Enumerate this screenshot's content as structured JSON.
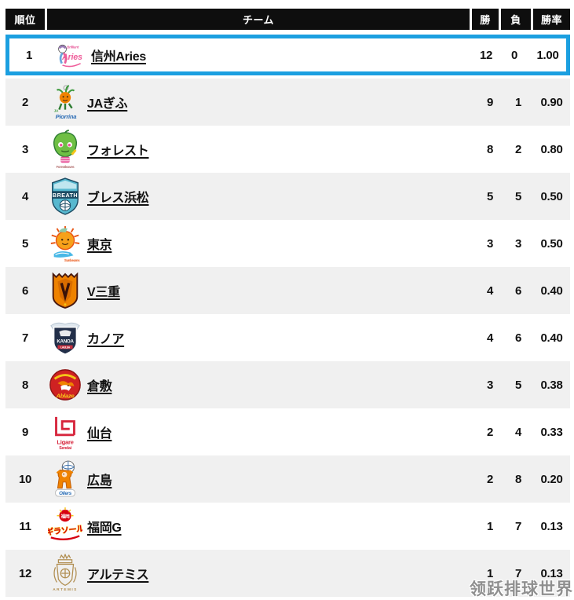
{
  "header": {
    "rank": "順位",
    "team": "チーム",
    "wins": "勝",
    "losses": "負",
    "rate": "勝率"
  },
  "watermark": "领跃排球世界",
  "colors": {
    "header_bg": "#0e0e0e",
    "row_alt_bg": "#f0f0f0",
    "highlight_border": "#1b9fe0",
    "text": "#111111"
  },
  "rows": [
    {
      "rank": "1",
      "team": "信州Aries",
      "wins": "12",
      "losses": "0",
      "rate": "1.00",
      "logo": "shinshu-aries",
      "highlighted": true
    },
    {
      "rank": "2",
      "team": "JAぎふ",
      "wins": "9",
      "losses": "1",
      "rate": "0.90",
      "logo": "ja-gifu"
    },
    {
      "rank": "3",
      "team": "フォレスト",
      "wins": "8",
      "losses": "2",
      "rate": "0.80",
      "logo": "forest"
    },
    {
      "rank": "4",
      "team": "ブレス浜松",
      "wins": "5",
      "losses": "5",
      "rate": "0.50",
      "logo": "breath-hamamatsu"
    },
    {
      "rank": "5",
      "team": "東京",
      "wins": "3",
      "losses": "3",
      "rate": "0.50",
      "logo": "tokyo"
    },
    {
      "rank": "6",
      "team": "V三重",
      "wins": "4",
      "losses": "6",
      "rate": "0.40",
      "logo": "v-mie"
    },
    {
      "rank": "7",
      "team": "カノア",
      "wins": "4",
      "losses": "6",
      "rate": "0.40",
      "logo": "kanoa"
    },
    {
      "rank": "8",
      "team": "倉敷",
      "wins": "3",
      "losses": "5",
      "rate": "0.38",
      "logo": "kurashiki"
    },
    {
      "rank": "9",
      "team": "仙台",
      "wins": "2",
      "losses": "4",
      "rate": "0.33",
      "logo": "sendai"
    },
    {
      "rank": "10",
      "team": "広島",
      "wins": "2",
      "losses": "8",
      "rate": "0.20",
      "logo": "hiroshima"
    },
    {
      "rank": "11",
      "team": "福岡G",
      "wins": "1",
      "losses": "7",
      "rate": "0.13",
      "logo": "fukuoka-g"
    },
    {
      "rank": "12",
      "team": "アルテミス",
      "wins": "1",
      "losses": "7",
      "rate": "0.13",
      "logo": "artemis"
    }
  ]
}
